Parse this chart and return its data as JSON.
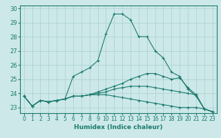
{
  "xlabel": "Humidex (Indice chaleur)",
  "ylabel": "",
  "bg_color": "#cce8e8",
  "line_color": "#1a7a6e",
  "grid_color": "#aacfcf",
  "xlim": [
    -0.5,
    23.5
  ],
  "ylim": [
    22.6,
    30.2
  ],
  "yticks": [
    23,
    24,
    25,
    26,
    27,
    28,
    29,
    30
  ],
  "xticks": [
    0,
    1,
    2,
    3,
    4,
    5,
    6,
    7,
    8,
    9,
    10,
    11,
    12,
    13,
    14,
    15,
    16,
    17,
    18,
    19,
    20,
    21,
    22,
    23
  ],
  "series": [
    [
      23.8,
      23.1,
      23.5,
      23.4,
      23.5,
      23.6,
      25.2,
      25.5,
      25.8,
      26.3,
      28.2,
      29.6,
      29.6,
      29.2,
      28.0,
      28.0,
      27.0,
      26.5,
      25.5,
      25.2,
      24.3,
      23.8,
      22.9,
      22.7
    ],
    [
      23.8,
      23.1,
      23.5,
      23.4,
      23.5,
      23.6,
      23.8,
      23.8,
      23.9,
      24.1,
      24.3,
      24.5,
      24.7,
      25.0,
      25.2,
      25.4,
      25.4,
      25.2,
      25.0,
      25.1,
      24.4,
      23.9,
      22.9,
      22.7
    ],
    [
      23.8,
      23.1,
      23.5,
      23.4,
      23.5,
      23.6,
      23.8,
      23.8,
      23.9,
      24.0,
      24.1,
      24.3,
      24.4,
      24.5,
      24.5,
      24.5,
      24.4,
      24.3,
      24.2,
      24.1,
      24.0,
      23.9,
      22.9,
      22.7
    ],
    [
      23.8,
      23.1,
      23.5,
      23.4,
      23.5,
      23.6,
      23.8,
      23.8,
      23.9,
      23.9,
      23.9,
      23.8,
      23.7,
      23.6,
      23.5,
      23.4,
      23.3,
      23.2,
      23.1,
      23.0,
      23.0,
      23.0,
      22.9,
      22.7
    ]
  ]
}
